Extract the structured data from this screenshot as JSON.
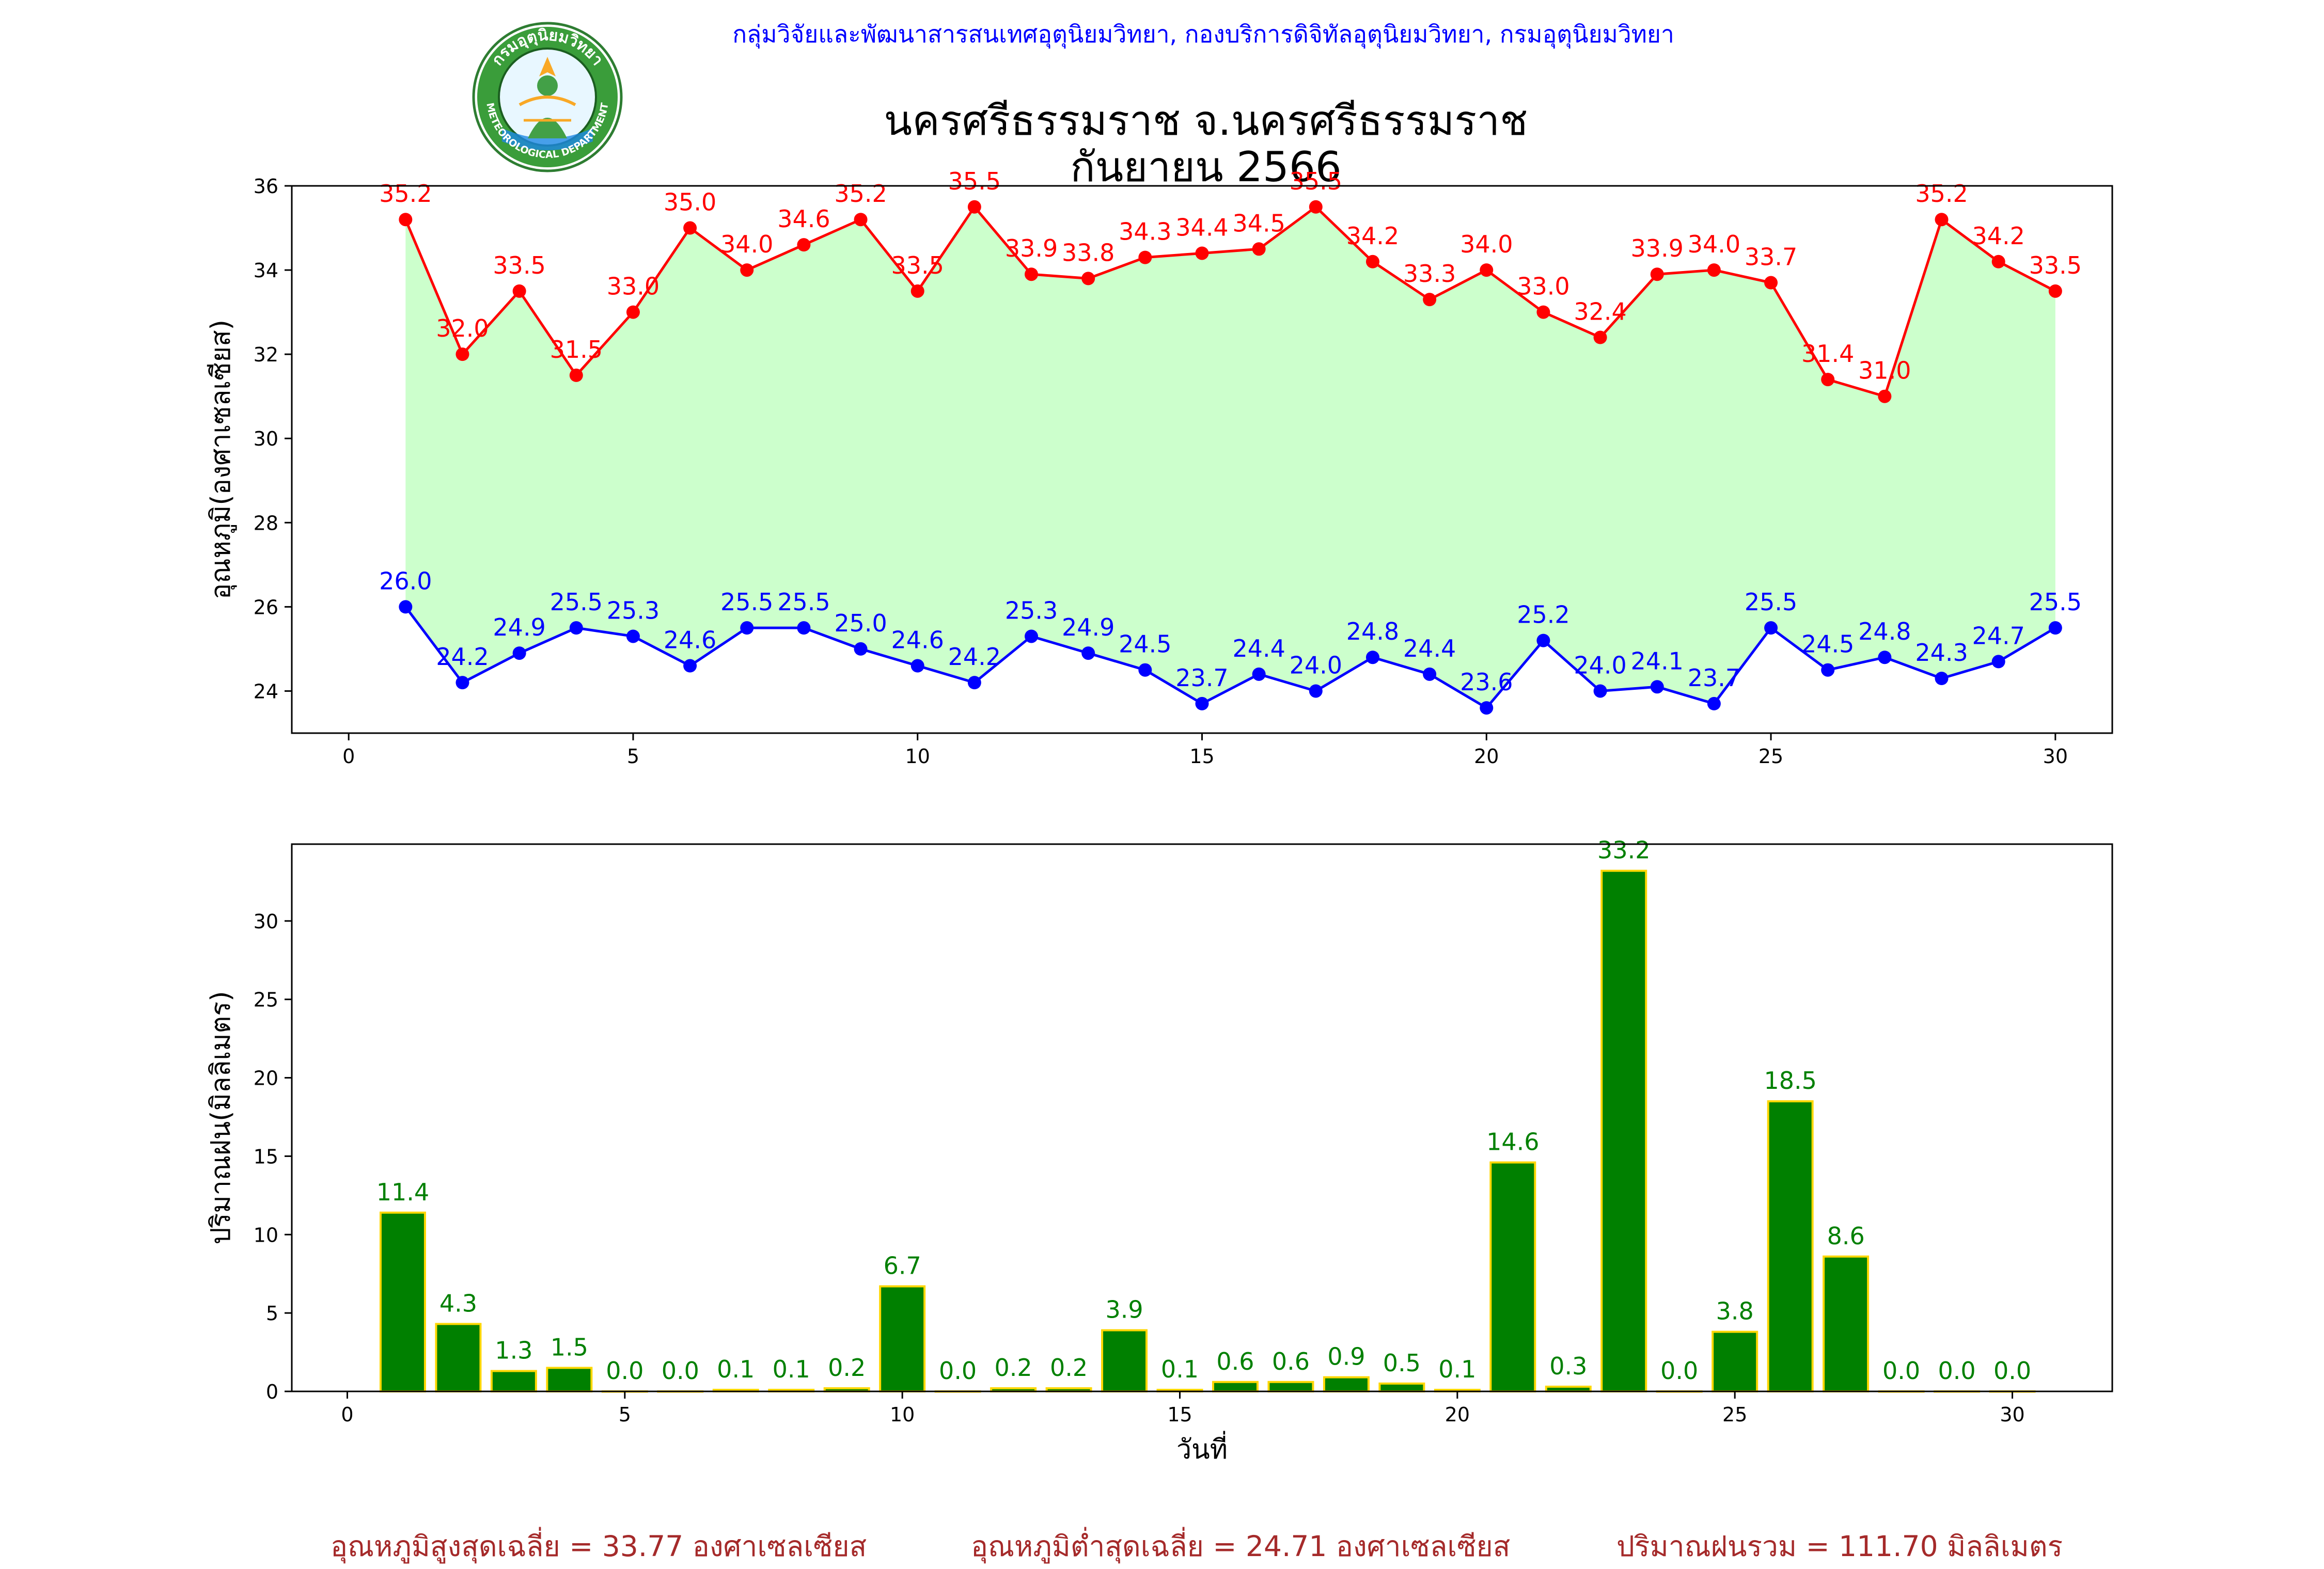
{
  "header": {
    "agency": "กลุ่มวิจัยและพัฒนาสารสนเทศอุตุนิยมวิทยา, กองบริการดิจิทัลอุตุนิยมวิทยา, กรมอุตุนิยมวิทยา",
    "logo_text_top": "กรมอุตุนิยมวิทยา",
    "logo_text_bottom": "METEOROLOGICAL DEPARTMENT"
  },
  "title": {
    "line1": "นครศรีธรรมราช จ.นครศรีธรรมราช",
    "line2": "กันยายน 2566"
  },
  "summary": {
    "avg_max": "อุณหภูมิสูงสุดเฉลี่ย = 33.77 องศาเซลเซียส",
    "avg_min": "อุณหภูมิต่ำสุดเฉลี่ย = 24.71 องศาเซลเซียส",
    "total_rain": "ปริมาณฝนรวม = 111.70 มิลลิเมตร"
  },
  "colors": {
    "max_line": "#ff0000",
    "min_line": "#0000ff",
    "fill_between": "#ccffcc",
    "rain_bar": "#008000",
    "rain_bar_edge": "#ffd700",
    "rain_label": "#008000"
  },
  "chart_data": [
    {
      "type": "line",
      "ylabel": "อุณหภูมิ(องศาเซลเซียส)",
      "xlabel": "",
      "xlim": [
        -1,
        31
      ],
      "ylim": [
        23,
        36
      ],
      "x_ticks": [
        0,
        5,
        10,
        15,
        20,
        25,
        30
      ],
      "y_ticks": [
        24,
        26,
        28,
        30,
        32,
        34,
        36
      ],
      "x": [
        1,
        2,
        3,
        4,
        5,
        6,
        7,
        8,
        9,
        10,
        11,
        12,
        13,
        14,
        15,
        16,
        17,
        18,
        19,
        20,
        21,
        22,
        23,
        24,
        25,
        26,
        27,
        28,
        29,
        30
      ],
      "series": [
        {
          "key": "max",
          "values": [
            35.2,
            32.0,
            33.5,
            31.5,
            33.0,
            35.0,
            34.0,
            34.6,
            35.2,
            33.5,
            35.5,
            33.9,
            33.8,
            34.3,
            34.4,
            34.5,
            35.5,
            34.2,
            33.3,
            34.0,
            33.0,
            32.4,
            33.9,
            34.0,
            33.7,
            31.4,
            31.0,
            35.2,
            34.2,
            33.5
          ]
        },
        {
          "key": "min",
          "values": [
            26.0,
            24.2,
            24.9,
            25.5,
            25.3,
            24.6,
            25.5,
            25.5,
            25.0,
            24.6,
            24.2,
            25.3,
            24.9,
            24.5,
            23.7,
            24.4,
            24.0,
            24.8,
            24.4,
            23.6,
            25.2,
            24.0,
            24.1,
            23.7,
            25.5,
            24.5,
            24.8,
            24.3,
            24.7,
            25.5
          ]
        }
      ],
      "fill_between": true,
      "grid": false
    },
    {
      "type": "bar",
      "ylabel": "ปริมาณฝน(มิลลิเมตร)",
      "xlabel": "วันที่",
      "xlim": [
        -1,
        31.8
      ],
      "ylim": [
        0,
        34.9
      ],
      "x_ticks": [
        0,
        5,
        10,
        15,
        20,
        25,
        30
      ],
      "y_ticks": [
        0,
        5,
        10,
        15,
        20,
        25,
        30
      ],
      "x": [
        1,
        2,
        3,
        4,
        5,
        6,
        7,
        8,
        9,
        10,
        11,
        12,
        13,
        14,
        15,
        16,
        17,
        18,
        19,
        20,
        21,
        22,
        23,
        24,
        25,
        26,
        27,
        28,
        29,
        30
      ],
      "values": [
        11.4,
        4.3,
        1.3,
        1.5,
        0.0,
        0.0,
        0.1,
        0.1,
        0.2,
        6.7,
        0.0,
        0.2,
        0.2,
        3.9,
        0.1,
        0.6,
        0.6,
        0.9,
        0.5,
        0.1,
        14.6,
        0.3,
        33.2,
        0.0,
        3.8,
        18.5,
        8.6,
        0.0,
        0.0,
        0.0
      ],
      "grid": false
    }
  ]
}
